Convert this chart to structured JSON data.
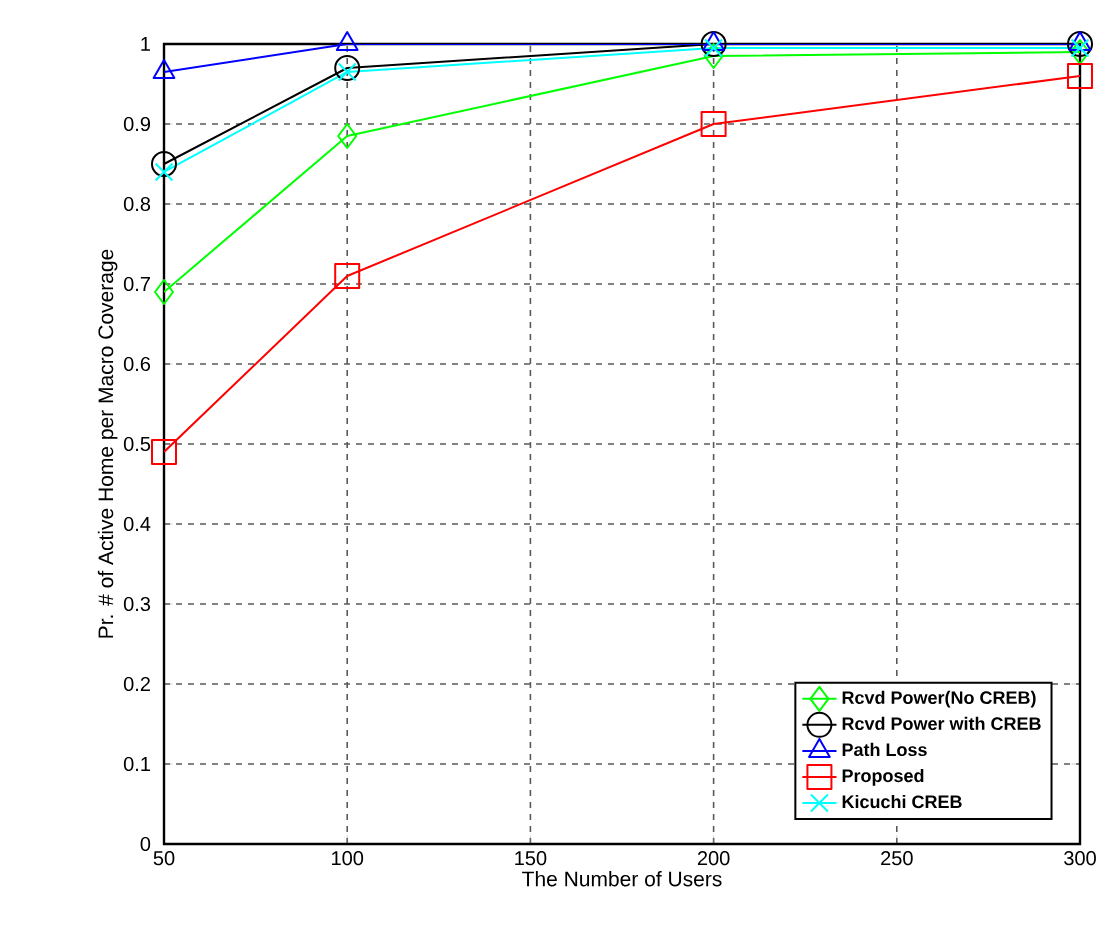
{
  "chart_data": {
    "type": "line",
    "xlabel": "The Number of Users",
    "ylabel": "Pr. # of Active Home per Macro Coverage",
    "x": [
      50,
      100,
      200,
      300
    ],
    "xlim": [
      50,
      300
    ],
    "xticks": [
      50,
      100,
      150,
      200,
      250,
      300
    ],
    "ylim": [
      0,
      1
    ],
    "yticks": [
      0,
      0.1,
      0.2,
      0.3,
      0.4,
      0.5,
      0.6,
      0.7,
      0.8,
      0.9,
      1
    ],
    "grid": true,
    "legend": "bottom right",
    "line_style": "solid",
    "series": [
      {
        "name": "Rcvd Power(No CREB)",
        "color": "#00ff00",
        "marker": "diamond",
        "values": [
          0.69,
          0.885,
          0.985,
          0.99
        ]
      },
      {
        "name": "Rcvd Power with CREB",
        "color": "#000000",
        "marker": "circle",
        "values": [
          0.85,
          0.97,
          1.0,
          1.0
        ]
      },
      {
        "name": "Path Loss",
        "color": "#0000ff",
        "marker": "triangle",
        "values": [
          0.965,
          1.0,
          1.0,
          1.0
        ]
      },
      {
        "name": "Proposed",
        "color": "#ff0000",
        "marker": "square",
        "values": [
          0.49,
          0.71,
          0.9,
          0.96
        ]
      },
      {
        "name": "Kicuchi CREB",
        "color": "#00ffff",
        "marker": "cross",
        "values": [
          0.84,
          0.965,
          0.995,
          0.995
        ]
      }
    ]
  }
}
